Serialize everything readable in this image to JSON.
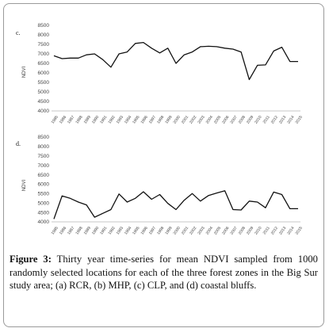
{
  "colors": {
    "line": "#111111",
    "axis": "#b5b5b5",
    "frame": "#9a9a9a"
  },
  "chart_data": [
    {
      "type": "line",
      "panel_label": "c.",
      "ylabel": "NDVI",
      "ylim": [
        4000,
        8500
      ],
      "y_ticks": [
        "8500",
        "8000",
        "7500",
        "7000",
        "6500",
        "6000",
        "5500",
        "5000",
        "4500",
        "4000"
      ],
      "x": [
        "1985",
        "1986",
        "1987",
        "1988",
        "1989",
        "1990",
        "1991",
        "1992",
        "1993",
        "1994",
        "1995",
        "1996",
        "1997",
        "1998",
        "1999",
        "2000",
        "2001",
        "2002",
        "2003",
        "2004",
        "2005",
        "2006",
        "2007",
        "2008",
        "2009",
        "2010",
        "2011",
        "2012",
        "2013",
        "2014",
        "2015"
      ],
      "x_tick_labels": [
        "1985",
        "1986",
        "1987",
        "1988",
        "1989",
        "1990",
        "1991",
        "1992",
        "1993",
        "1994",
        "1995",
        "1996",
        "1997",
        "1998",
        "1999",
        "2000",
        "2001",
        "2002",
        "2003",
        "2004",
        "2005",
        "2006",
        "2007",
        "2008",
        "2009",
        "2010",
        "2011",
        "2012",
        "2013",
        "2014",
        "2015"
      ],
      "values": [
        6900,
        6750,
        6780,
        6780,
        6950,
        7000,
        6700,
        6300,
        7000,
        7100,
        7550,
        7600,
        7300,
        7050,
        7300,
        6500,
        6950,
        7100,
        7380,
        7400,
        7380,
        7300,
        7250,
        7100,
        5650,
        6400,
        6420,
        7150,
        7350,
        6600,
        6600
      ],
      "grid": false
    },
    {
      "type": "line",
      "panel_label": "d.",
      "ylabel": "NDVI",
      "ylim": [
        4000,
        8500
      ],
      "y_ticks": [
        "8500",
        "8000",
        "7500",
        "7000",
        "6500",
        "6000",
        "5500",
        "5000",
        "4500",
        "4000"
      ],
      "x": [
        "1985",
        "1986",
        "1987",
        "1988",
        "1989",
        "1990",
        "1991",
        "1992",
        "1993",
        "1994",
        "1995",
        "1996",
        "1997",
        "1998",
        "1999",
        "2000",
        "2001",
        "2002",
        "2003",
        "2004",
        "2005",
        "2006",
        "2007",
        "2008",
        "2009",
        "2010",
        "2011",
        "2012",
        "2013",
        "2014",
        "2015"
      ],
      "x_tick_labels": [
        "1985",
        "1986",
        "1987",
        "1988",
        "1989",
        "1990",
        "1991",
        "1992",
        "1993",
        "1994",
        "1995",
        "1996",
        "1997",
        "1998",
        "1999",
        "2000",
        "2001",
        "2002",
        "2003",
        "2004",
        "2005",
        "2006",
        "2007",
        "2008",
        "2009",
        "2010",
        "2011",
        "2012",
        "2013",
        "2014",
        "2015"
      ],
      "values": [
        4150,
        5380,
        5250,
        5050,
        4900,
        4250,
        4450,
        4650,
        5480,
        5050,
        5250,
        5600,
        5200,
        5450,
        4980,
        4650,
        5150,
        5500,
        5100,
        5400,
        5530,
        5650,
        4650,
        4630,
        5100,
        5050,
        4750,
        5580,
        5450,
        4700,
        4700
      ],
      "grid": false
    }
  ],
  "caption": {
    "label": "Figure 3:",
    "text": " Thirty year time-series for mean NDVI sampled from 1000 randomly selected locations for each of the three forest zones in the Big Sur study area; (a) RCR, (b) MHP, (c) CLP, and (d) coastal bluffs."
  }
}
